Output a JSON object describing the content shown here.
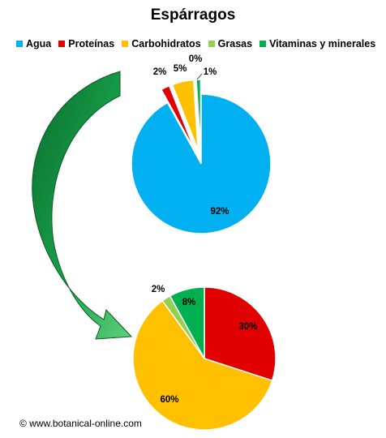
{
  "chart_data": [
    {
      "type": "pie",
      "title": "Espárragos",
      "legend": "top",
      "categories": [
        "Agua",
        "Proteínas",
        "Carbohidratos",
        "Grasas",
        "Vitaminas y minerales"
      ],
      "colors": [
        "#00B0F0",
        "#E00000",
        "#FFC000",
        "#92D050",
        "#00B050"
      ],
      "values": [
        92,
        2,
        5,
        0,
        1
      ],
      "labels": [
        "92%",
        "2%",
        "5%",
        "0%",
        "1%"
      ],
      "exploded": [
        "Proteínas",
        "Carbohidratos",
        "Grasas",
        "Vitaminas y minerales"
      ]
    },
    {
      "type": "pie",
      "categories": [
        "Proteínas",
        "Carbohidratos",
        "Grasas",
        "Vitaminas y minerales"
      ],
      "colors": [
        "#E00000",
        "#FFC000",
        "#92D050",
        "#00B050"
      ],
      "values": [
        30,
        60,
        2,
        8
      ],
      "labels": [
        "30%",
        "60%",
        "2%",
        "8%"
      ]
    }
  ],
  "credit": "© www.botanical-online.com"
}
